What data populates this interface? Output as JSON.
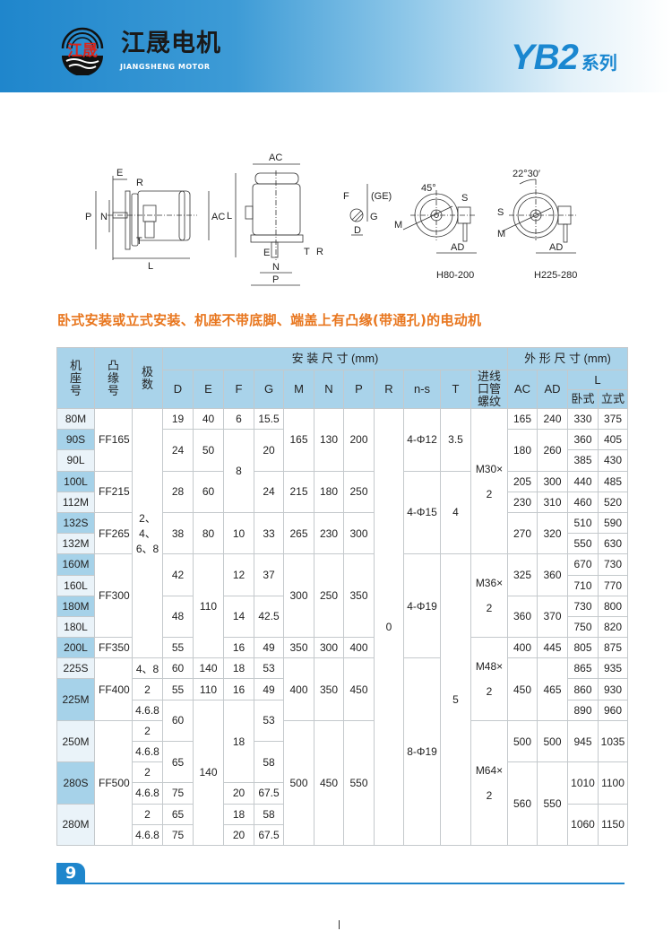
{
  "header": {
    "logo_text": "江晟",
    "brand_cn": "江晟电机",
    "brand_en": "JIANGSHENG MOTOR",
    "series_model": "YB2",
    "series_suffix": "系列",
    "colors": {
      "banner": "#1f86cc",
      "logo_red": "#d8261c",
      "series": "#1a87d0"
    }
  },
  "drawings": {
    "side": {
      "E": "E",
      "R": "R",
      "P": "P",
      "N": "N",
      "AC": "AC",
      "L": "L",
      "T": "T"
    },
    "vertical": {
      "AC": "AC",
      "L": "L",
      "E": "E",
      "N": "N",
      "T": "T",
      "R": "R",
      "P": "P"
    },
    "shaft": {
      "F": "F",
      "GE": "(GE)",
      "G": "G",
      "D": "D"
    },
    "flange_small": {
      "angle": "45°",
      "S": "S",
      "M": "M",
      "AD": "AD",
      "caption": "H80-200"
    },
    "flange_large": {
      "angle": "22°30′",
      "S": "S",
      "M": "M",
      "AD": "AD",
      "caption": "H225-280"
    }
  },
  "heading": "卧式安装或立式安装、机座不带底脚、端盖上有凸缘(带通孔)的电动机",
  "heading_color": "#e8761e",
  "table": {
    "headers": {
      "frame": "机座号",
      "flange": "凸缘号",
      "poles": "极数",
      "install": "安 装 尺 寸 (mm)",
      "outline": "外 形 尺 寸 (mm)",
      "D": "D",
      "E": "E",
      "F": "F",
      "G": "G",
      "M": "M",
      "N": "N",
      "P": "P",
      "R": "R",
      "ns": "n-s",
      "T": "T",
      "thread": "进线口管螺纹",
      "AC": "AC",
      "AD": "AD",
      "L": "L",
      "L_h": "卧式",
      "L_v": "立式"
    },
    "highlighted_frames": [
      "90S",
      "100L",
      "132S",
      "160M",
      "180M",
      "200L",
      "225M",
      "280S"
    ],
    "columns": [
      {
        "key": "frame",
        "cells": [
          [
            "80M",
            1
          ],
          [
            "90S",
            1
          ],
          [
            "90L",
            1
          ],
          [
            "100L",
            1
          ],
          [
            "112M",
            1
          ],
          [
            "132S",
            1
          ],
          [
            "132M",
            1
          ],
          [
            "160M",
            1
          ],
          [
            "160L",
            1
          ],
          [
            "180M",
            1
          ],
          [
            "180L",
            1
          ],
          [
            "200L",
            1
          ],
          [
            "225S",
            1
          ],
          [
            "225M",
            2
          ],
          [
            "250M",
            2
          ],
          [
            "280S",
            2
          ],
          [
            "280M",
            2
          ]
        ]
      },
      {
        "key": "flange",
        "cells": [
          [
            "FF165",
            3
          ],
          [
            "FF215",
            2
          ],
          [
            "FF265",
            2
          ],
          [
            "FF300",
            4
          ],
          [
            "FF350",
            1
          ],
          [
            "FF400",
            3
          ],
          [
            "FF500",
            6
          ]
        ]
      },
      {
        "key": "poles",
        "cells": [
          [
            "2、4、6、8",
            12
          ],
          [
            "4、8",
            1
          ],
          [
            "2",
            1
          ],
          [
            "4.6.8",
            1
          ],
          [
            "2",
            1
          ],
          [
            "4.6.8",
            1
          ],
          [
            "2",
            1
          ],
          [
            "4.6.8",
            1
          ],
          [
            "2",
            1
          ],
          [
            "4.6.8",
            1
          ]
        ]
      },
      {
        "key": "D",
        "cells": [
          [
            "19",
            1
          ],
          [
            "24",
            2
          ],
          [
            "28",
            2
          ],
          [
            "38",
            2
          ],
          [
            "42",
            2
          ],
          [
            "48",
            2
          ],
          [
            "55",
            1
          ],
          [
            "60",
            1
          ],
          [
            "55",
            1
          ],
          [
            "60",
            2
          ],
          [
            "65",
            2
          ],
          [
            "75",
            1
          ],
          [
            "65",
            1
          ],
          [
            "75",
            1
          ]
        ]
      },
      {
        "key": "E",
        "cells": [
          [
            "40",
            1
          ],
          [
            "50",
            2
          ],
          [
            "60",
            2
          ],
          [
            "80",
            2
          ],
          [
            "110",
            5
          ],
          [
            "140",
            1
          ],
          [
            "110",
            1
          ],
          [
            "140",
            7
          ]
        ]
      },
      {
        "key": "F",
        "cells": [
          [
            "6",
            1
          ],
          [
            "8",
            4
          ],
          [
            "10",
            2
          ],
          [
            "12",
            2
          ],
          [
            "14",
            2
          ],
          [
            "16",
            1
          ],
          [
            "18",
            1
          ],
          [
            "16",
            1
          ],
          [
            "18",
            4
          ],
          [
            "20",
            1
          ],
          [
            "18",
            1
          ],
          [
            "20",
            1
          ]
        ]
      },
      {
        "key": "G",
        "cells": [
          [
            "15.5",
            1
          ],
          [
            "20",
            2
          ],
          [
            "24",
            2
          ],
          [
            "33",
            2
          ],
          [
            "37",
            2
          ],
          [
            "42.5",
            2
          ],
          [
            "49",
            1
          ],
          [
            "53",
            1
          ],
          [
            "49",
            1
          ],
          [
            "53",
            2
          ],
          [
            "58",
            2
          ],
          [
            "67.5",
            1
          ],
          [
            "58",
            1
          ],
          [
            "67.5",
            1
          ]
        ]
      },
      {
        "key": "M",
        "cells": [
          [
            "165",
            3
          ],
          [
            "215",
            2
          ],
          [
            "265",
            2
          ],
          [
            "300",
            4
          ],
          [
            "350",
            1
          ],
          [
            "400",
            3
          ],
          [
            "500",
            6
          ]
        ]
      },
      {
        "key": "N",
        "cells": [
          [
            "130",
            3
          ],
          [
            "180",
            2
          ],
          [
            "230",
            2
          ],
          [
            "250",
            4
          ],
          [
            "300",
            1
          ],
          [
            "350",
            3
          ],
          [
            "450",
            6
          ]
        ]
      },
      {
        "key": "P",
        "cells": [
          [
            "200",
            3
          ],
          [
            "250",
            2
          ],
          [
            "300",
            2
          ],
          [
            "350",
            4
          ],
          [
            "400",
            1
          ],
          [
            "450",
            3
          ],
          [
            "550",
            6
          ]
        ]
      },
      {
        "key": "R",
        "cells": [
          [
            "0",
            21
          ]
        ]
      },
      {
        "key": "ns",
        "cells": [
          [
            "4-Φ12",
            3
          ],
          [
            "4-Φ15",
            4
          ],
          [
            "4-Φ19",
            5
          ],
          [
            "8-Φ19",
            9
          ]
        ]
      },
      {
        "key": "T",
        "cells": [
          [
            "3.5",
            3
          ],
          [
            "4",
            4
          ],
          [
            "5",
            14
          ]
        ]
      },
      {
        "key": "thread",
        "cells": [
          [
            "M30×\n2",
            7
          ],
          [
            "M36×\n2",
            4
          ],
          [
            "M48×\n2",
            4
          ],
          [
            "M64×\n2",
            6
          ]
        ]
      },
      {
        "key": "AC",
        "cells": [
          [
            "165",
            1
          ],
          [
            "180",
            2
          ],
          [
            "205",
            1
          ],
          [
            "230",
            1
          ],
          [
            "270",
            2
          ],
          [
            "325",
            2
          ],
          [
            "360",
            2
          ],
          [
            "400",
            1
          ],
          [
            "450",
            3
          ],
          [
            "500",
            2
          ],
          [
            "560",
            4
          ]
        ]
      },
      {
        "key": "AD",
        "cells": [
          [
            "240",
            1
          ],
          [
            "260",
            2
          ],
          [
            "300",
            1
          ],
          [
            "310",
            1
          ],
          [
            "320",
            2
          ],
          [
            "360",
            2
          ],
          [
            "370",
            2
          ],
          [
            "445",
            1
          ],
          [
            "465",
            3
          ],
          [
            "500",
            2
          ],
          [
            "550",
            4
          ]
        ]
      },
      {
        "key": "L_h",
        "cells": [
          [
            "330",
            1
          ],
          [
            "360",
            1
          ],
          [
            "385",
            1
          ],
          [
            "440",
            1
          ],
          [
            "460",
            1
          ],
          [
            "510",
            1
          ],
          [
            "550",
            1
          ],
          [
            "670",
            1
          ],
          [
            "710",
            1
          ],
          [
            "730",
            1
          ],
          [
            "750",
            1
          ],
          [
            "805",
            1
          ],
          [
            "865",
            1
          ],
          [
            "860",
            1
          ],
          [
            "890",
            1
          ],
          [
            "945",
            2
          ],
          [
            "1010",
            2
          ],
          [
            "1060",
            2
          ]
        ]
      },
      {
        "key": "L_v",
        "cells": [
          [
            "375",
            1
          ],
          [
            "405",
            1
          ],
          [
            "430",
            1
          ],
          [
            "485",
            1
          ],
          [
            "520",
            1
          ],
          [
            "590",
            1
          ],
          [
            "630",
            1
          ],
          [
            "730",
            1
          ],
          [
            "770",
            1
          ],
          [
            "800",
            1
          ],
          [
            "820",
            1
          ],
          [
            "875",
            1
          ],
          [
            "935",
            1
          ],
          [
            "930",
            1
          ],
          [
            "960",
            1
          ],
          [
            "1035",
            2
          ],
          [
            "1100",
            2
          ],
          [
            "1150",
            2
          ]
        ]
      }
    ]
  },
  "footer": {
    "page_number": "9"
  }
}
